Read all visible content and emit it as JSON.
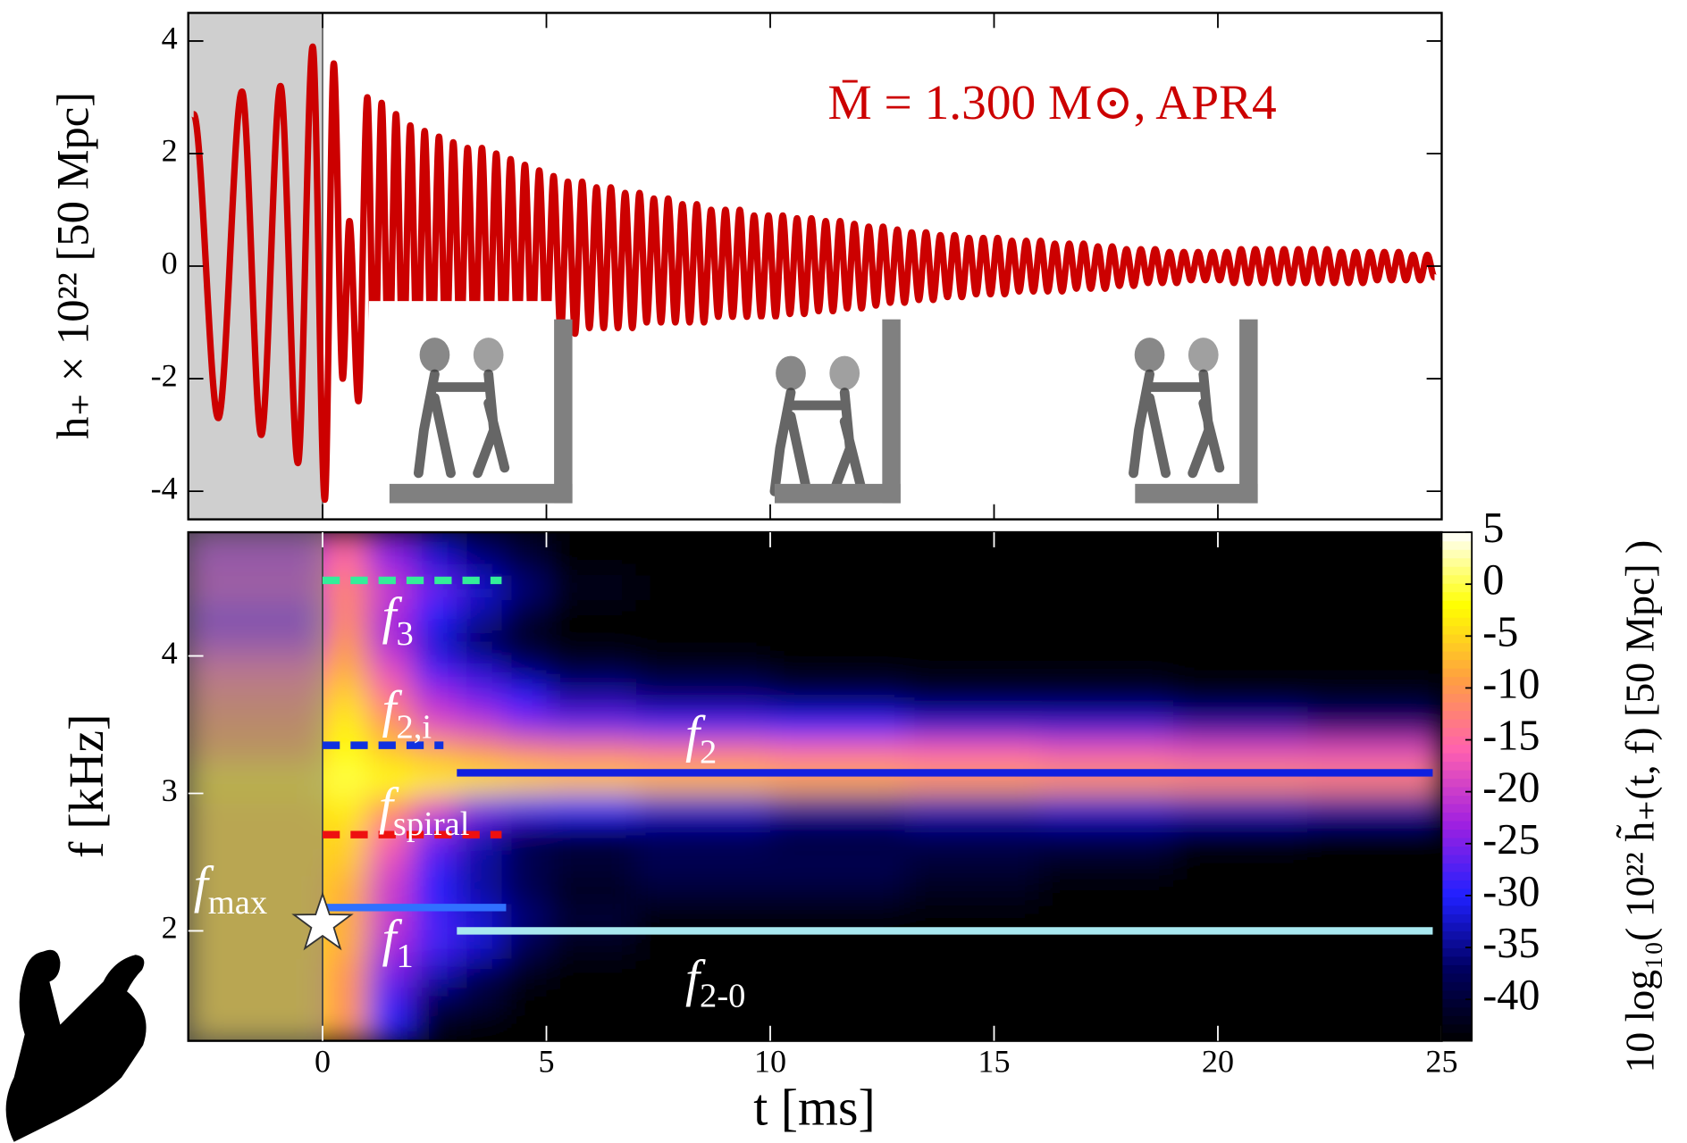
{
  "chart_data": [
    {
      "type": "line",
      "y_label": "h₊ × 10²² [50 Mpc]",
      "annotation": "M̄ = 1.300 M⊙,  APR4",
      "color": "#cc0000",
      "xlim": [
        -3,
        25
      ],
      "ylim": [
        -4.5,
        4.5
      ],
      "yticks": [
        -4,
        -2,
        0,
        2,
        4
      ],
      "shade": [
        -3,
        0
      ],
      "x": [
        -2.88,
        -2.33,
        -1.8,
        -1.37,
        -0.94,
        -0.55,
        -0.22,
        0.05,
        0.25,
        0.45,
        0.6,
        0.8,
        1,
        1.16,
        1.32,
        1.48,
        1.64,
        1.8,
        1.96,
        2.12,
        2.28,
        2.44,
        2.6,
        2.76,
        2.92,
        3.08,
        3.24,
        3.4,
        3.56,
        3.72,
        3.88,
        4.04,
        4.2,
        4.36,
        4.52,
        4.68,
        4.84,
        5,
        5.16,
        5.32,
        5.48,
        5.64,
        5.8,
        5.96,
        6.12,
        6.28,
        6.44,
        6.6,
        6.76,
        6.92,
        7.08,
        7.24,
        7.4,
        7.56,
        7.72,
        7.88,
        8.04,
        8.2,
        8.36,
        8.52,
        8.68,
        8.84,
        9,
        9.16,
        9.32,
        9.48,
        9.64,
        9.8,
        9.96,
        10.12,
        10.28,
        10.44,
        10.6,
        10.76,
        10.92,
        11.08,
        11.24,
        11.4,
        11.56,
        11.72,
        11.88,
        12.04,
        12.2,
        12.36,
        12.52,
        12.68,
        12.84,
        13,
        13.16,
        13.32,
        13.48,
        13.64,
        13.8,
        13.96,
        14.12,
        14.28,
        14.44,
        14.6,
        14.76,
        14.92,
        15.08,
        15.24,
        15.4,
        15.56,
        15.72,
        15.88,
        16.04,
        16.2,
        16.36,
        16.52,
        16.68,
        16.84,
        17,
        17.16,
        17.32,
        17.48,
        17.64,
        17.8,
        17.96,
        18.12,
        18.28,
        18.44,
        18.6,
        18.76,
        18.92,
        19.08,
        19.24,
        19.4,
        19.56,
        19.72,
        19.88,
        20.04,
        20.2,
        20.36,
        20.52,
        20.68,
        20.84,
        21,
        21.16,
        21.32,
        21.48,
        21.64,
        21.8,
        21.96,
        22.12,
        22.28,
        22.44,
        22.6,
        22.76,
        22.92,
        23.08,
        23.24,
        23.4,
        23.56,
        23.72,
        23.88,
        24.04,
        24.2,
        24.36,
        24.52,
        24.68,
        24.84
      ],
      "values": [
        2.7,
        -2.7,
        3.1,
        -3.0,
        3.2,
        -3.5,
        3.9,
        -4.15,
        3.6,
        -2.0,
        0.8,
        -2.4,
        3.0,
        -2.2,
        2.9,
        -2.0,
        2.7,
        -1.9,
        2.5,
        -1.8,
        2.4,
        -1.7,
        2.3,
        -1.6,
        2.2,
        -1.5,
        2.1,
        -1.5,
        2.1,
        -1.4,
        2.0,
        -1.4,
        1.9,
        -1.3,
        1.8,
        -1.3,
        1.7,
        -1.2,
        1.6,
        -1.2,
        1.5,
        -1.2,
        1.5,
        -1.1,
        1.4,
        -1.1,
        1.4,
        -1.1,
        1.3,
        -1.1,
        1.3,
        -1.0,
        1.2,
        -1.0,
        1.2,
        -1.0,
        1.1,
        -1.0,
        1.1,
        -1.0,
        1.0,
        -0.9,
        1.0,
        -0.9,
        1.0,
        -0.9,
        0.9,
        -0.9,
        0.9,
        -0.9,
        0.9,
        -0.85,
        0.85,
        -0.85,
        0.85,
        -0.8,
        0.8,
        -0.8,
        0.8,
        -0.75,
        0.75,
        -0.75,
        0.7,
        -0.7,
        0.7,
        -0.65,
        0.65,
        -0.65,
        0.6,
        -0.6,
        0.6,
        -0.6,
        0.55,
        -0.55,
        0.55,
        -0.55,
        0.5,
        -0.5,
        0.5,
        -0.5,
        0.5,
        -0.5,
        0.45,
        -0.45,
        0.45,
        -0.45,
        0.45,
        -0.45,
        0.4,
        -0.45,
        0.4,
        -0.4,
        0.4,
        -0.4,
        0.35,
        -0.4,
        0.35,
        -0.35,
        0.3,
        -0.35,
        0.3,
        -0.3,
        0.3,
        -0.3,
        0.25,
        -0.3,
        0.25,
        -0.25,
        0.25,
        -0.25,
        0.25,
        -0.25,
        0.25,
        -0.3,
        0.3,
        -0.3,
        0.3,
        -0.3,
        0.3,
        -0.3,
        0.3,
        -0.3,
        0.3,
        -0.3,
        0.3,
        -0.3,
        0.3,
        -0.3,
        0.25,
        -0.3,
        0.25,
        -0.3,
        0.25,
        -0.25,
        0.25,
        -0.25,
        0.25,
        -0.25,
        0.2,
        -0.25,
        0.2,
        -0.2
      ]
    },
    {
      "type": "heatmap",
      "x_label": "t [ms]",
      "y_label": "f [kHz]",
      "colorbar_label": "10 log₁₀( 10²² h̃₊(t, f)  [50 Mpc] )",
      "xlim": [
        -3,
        25
      ],
      "ylim": [
        1.2,
        4.9
      ],
      "xticks": [
        0,
        5,
        10,
        15,
        20,
        25
      ],
      "yticks": [
        2,
        3,
        4
      ],
      "clim": [
        -44,
        5
      ],
      "cticks": [
        5,
        0,
        -5,
        -10,
        -15,
        -20,
        -25,
        -30,
        -35,
        -40
      ],
      "colormap": [
        "#000000",
        "#000060",
        "#2020ff",
        "#a020e0",
        "#ff60b0",
        "#ffa040",
        "#ffff00",
        "#ffffff"
      ],
      "shade": [
        -3,
        0
      ],
      "xbins": [
        -3,
        0,
        1,
        2,
        3,
        4,
        5,
        7,
        10,
        13,
        16,
        19,
        22,
        25
      ],
      "ybins": [
        1.2,
        1.4,
        1.6,
        1.8,
        2.0,
        2.2,
        2.4,
        2.6,
        2.8,
        3.0,
        3.2,
        3.4,
        3.6,
        3.8,
        4.0,
        4.2,
        4.4,
        4.6,
        4.9
      ],
      "values": [
        [
          -5,
          -10,
          -30,
          -42,
          -44,
          -44,
          -44,
          -44,
          -44,
          -44,
          -44,
          -44,
          -44
        ],
        [
          -5,
          -10,
          -28,
          -38,
          -40,
          -44,
          -44,
          -44,
          -44,
          -44,
          -44,
          -44,
          -44
        ],
        [
          -5,
          -10,
          -25,
          -33,
          -38,
          -42,
          -44,
          -44,
          -44,
          -44,
          -44,
          -44,
          -44
        ],
        [
          -5,
          -8,
          -22,
          -28,
          -32,
          -38,
          -42,
          -44,
          -44,
          -44,
          -44,
          -44,
          -44
        ],
        [
          -5,
          -8,
          -20,
          -28,
          -32,
          -36,
          -40,
          -44,
          -44,
          -44,
          -44,
          -44,
          -44
        ],
        [
          -5,
          -8,
          -20,
          -30,
          -34,
          -38,
          -42,
          -40,
          -40,
          -42,
          -44,
          -44,
          -44
        ],
        [
          -5,
          -6,
          -18,
          -28,
          -34,
          -38,
          -40,
          -38,
          -38,
          -40,
          -42,
          -44,
          -44
        ],
        [
          -5,
          -5,
          -15,
          -25,
          -33,
          -38,
          -40,
          -38,
          -40,
          -38,
          -38,
          -42,
          -44
        ],
        [
          -5,
          -3,
          -10,
          -18,
          -25,
          -28,
          -30,
          -32,
          -34,
          -33,
          -32,
          -33,
          -34
        ],
        [
          -3,
          0,
          -2,
          -3,
          -4,
          -5,
          -6,
          -7,
          -8,
          -9,
          -10,
          -11,
          -12
        ],
        [
          -8,
          -2,
          -6,
          -8,
          -10,
          -12,
          -13,
          -14,
          -15,
          -16,
          -17,
          -18,
          -18
        ],
        [
          -10,
          -3,
          -10,
          -18,
          -20,
          -24,
          -26,
          -28,
          -30,
          -32,
          -32,
          -34,
          -36
        ],
        [
          -12,
          -5,
          -14,
          -22,
          -26,
          -30,
          -34,
          -36,
          -38,
          -40,
          -40,
          -42,
          -42
        ],
        [
          -15,
          -8,
          -18,
          -28,
          -32,
          -36,
          -40,
          -42,
          -44,
          -44,
          -44,
          -44,
          -44
        ],
        [
          -22,
          -10,
          -22,
          -32,
          -38,
          -42,
          -44,
          -44,
          -44,
          -44,
          -44,
          -44,
          -44
        ],
        [
          -25,
          -12,
          -22,
          -30,
          -34,
          -40,
          -44,
          -44,
          -44,
          -44,
          -44,
          -44,
          -44
        ],
        [
          -20,
          -12,
          -20,
          -26,
          -32,
          -36,
          -42,
          -44,
          -44,
          -44,
          -44,
          -44,
          -44
        ],
        [
          -22,
          -15,
          -24,
          -32,
          -36,
          -40,
          -44,
          -44,
          -44,
          -44,
          -44,
          -44,
          -44
        ]
      ],
      "markers": [
        {
          "label": "f",
          "subscript": "3",
          "f": 4.55,
          "t": [
            0,
            4
          ],
          "color": "#33ee99",
          "dashed": true
        },
        {
          "label": "f",
          "subscript": "2,i",
          "f": 3.35,
          "t": [
            0,
            2.7
          ],
          "color": "#1030e0",
          "dashed": true
        },
        {
          "label": "f",
          "subscript": "spiral",
          "f": 2.7,
          "t": [
            0,
            4
          ],
          "color": "#ee1010",
          "dashed": true
        },
        {
          "label": "f",
          "subscript": "max",
          "f": 2.17,
          "t": [
            0,
            4.1
          ],
          "color": "#3070ff",
          "dashed": false
        },
        {
          "label": "f",
          "subscript": "2",
          "f": 3.15,
          "t": [
            3,
            24.8
          ],
          "color": "#1020e0",
          "dashed": false
        },
        {
          "label": "f",
          "subscript": "2-0",
          "f": 2.0,
          "t": [
            3,
            24.8
          ],
          "color": "#a8e8f0",
          "dashed": false
        }
      ],
      "extra_labels": [
        {
          "label": "f",
          "subscript": "1"
        }
      ],
      "star": {
        "t": 0,
        "f": 2.05
      }
    }
  ]
}
